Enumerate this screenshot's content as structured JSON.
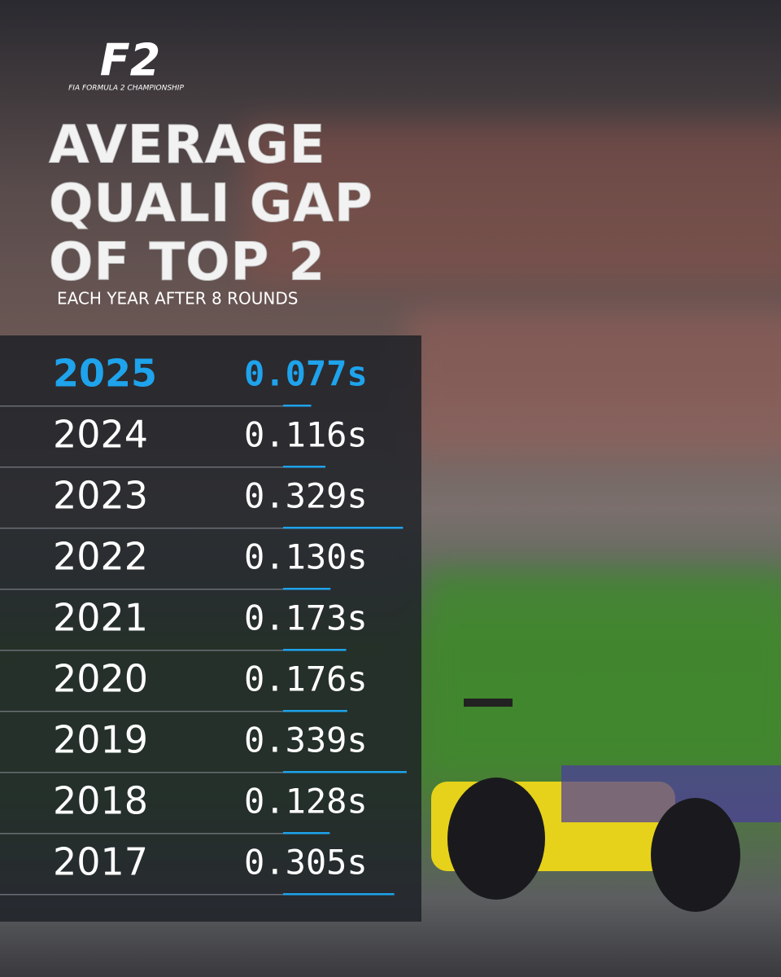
{
  "chart_data": {
    "type": "bar",
    "logo": "F2",
    "logo_subtitle": "FIA FORMULA 2 CHAMPIONSHIP",
    "title_lines": [
      "AVERAGE",
      "QUALI GAP",
      "OF TOP 2"
    ],
    "subtitle": "EACH YEAR AFTER 8 ROUNDS",
    "categories": [
      "2025",
      "2024",
      "2023",
      "2022",
      "2021",
      "2020",
      "2019",
      "2018",
      "2017"
    ],
    "values": [
      0.077,
      0.116,
      0.329,
      0.13,
      0.173,
      0.176,
      0.339,
      0.128,
      0.305
    ],
    "value_labels": [
      "0.077s",
      "0.116s",
      "0.329s",
      "0.130s",
      "0.173s",
      "0.176s",
      "0.339s",
      "0.128s",
      "0.305s"
    ],
    "color": "#1ea3ec",
    "highlight": 0
  }
}
